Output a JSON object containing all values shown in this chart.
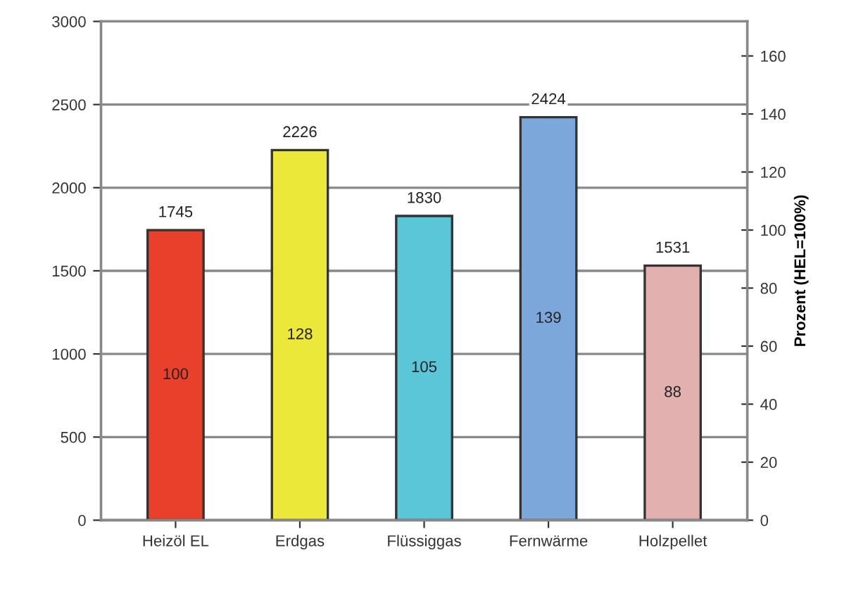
{
  "chart_data": {
    "type": "bar",
    "categories": [
      "Heizöl EL",
      "Erdgas",
      "Flüssiggas",
      "Fernwärme",
      "Holzpellet"
    ],
    "values": [
      1745,
      2226,
      1830,
      2424,
      1531
    ],
    "colors": [
      "#e8402a",
      "#ece83a",
      "#5bc6d8",
      "#7ba7db",
      "#e3b0b0"
    ],
    "data_labels": true,
    "ylim": [
      0,
      3000
    ],
    "yticks": [
      0,
      500,
      1000,
      1500,
      2000,
      2500,
      3000
    ],
    "y2lim": [
      0,
      171.9
    ],
    "y2ticks": [
      0,
      20,
      40,
      60,
      80,
      100,
      120,
      140,
      160
    ],
    "y2label": "Prozent (HEL=100%)",
    "grid": "y",
    "annotations": [
      "100",
      "128",
      "105",
      "139",
      "88"
    ]
  }
}
